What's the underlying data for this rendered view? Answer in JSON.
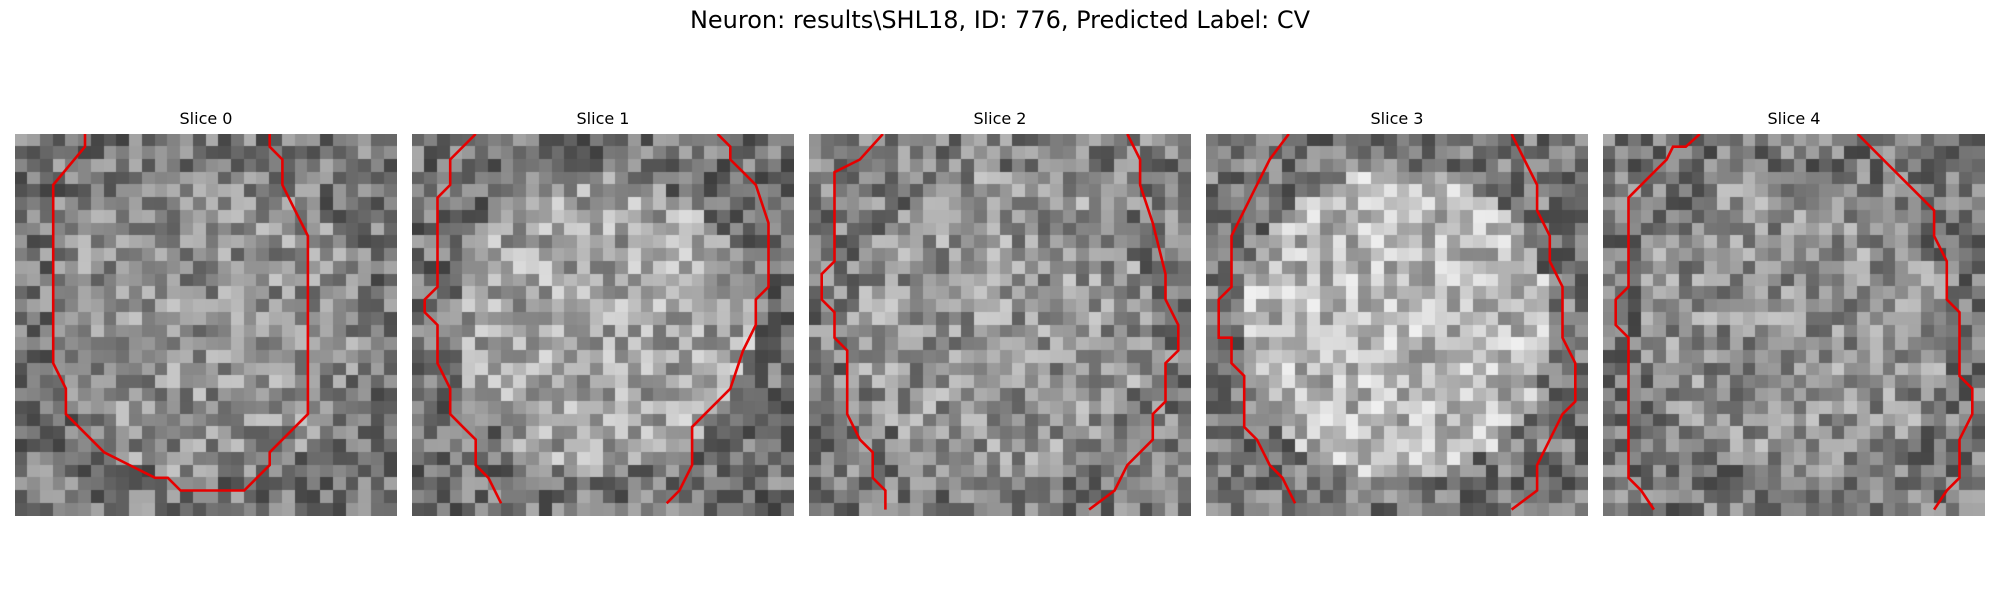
{
  "figure": {
    "title": "Neuron: results\\SHL18, ID: 776, Predicted Label: CV"
  },
  "image": {
    "colormap": "gray",
    "grid": [
      30,
      30
    ],
    "contour_color": "#e60000"
  },
  "slices": [
    {
      "title": "Slice 0",
      "seed": 11,
      "pattern": "uniform",
      "contour": [
        [
          5.5,
          0
        ],
        [
          5.5,
          1
        ],
        [
          3,
          4
        ],
        [
          3,
          18
        ],
        [
          4,
          20
        ],
        [
          4,
          22
        ],
        [
          6,
          24
        ],
        [
          7,
          25
        ],
        [
          9,
          26
        ],
        [
          11,
          27
        ],
        [
          12,
          27
        ],
        [
          13,
          28
        ],
        [
          18,
          28
        ],
        [
          20,
          26
        ],
        [
          20,
          25
        ],
        [
          23,
          22
        ],
        [
          23,
          8
        ],
        [
          22,
          6
        ],
        [
          21,
          4
        ],
        [
          21,
          2
        ],
        [
          20,
          1
        ],
        [
          20,
          0
        ]
      ]
    },
    {
      "title": "Slice 1",
      "seed": 23,
      "pattern": "ring",
      "contour": [
        [
          5,
          0
        ],
        [
          3,
          2
        ],
        [
          3,
          4
        ],
        [
          2,
          5
        ],
        [
          2,
          12
        ],
        [
          1,
          13
        ],
        [
          1,
          14
        ],
        [
          2,
          15
        ],
        [
          2,
          18
        ],
        [
          3,
          20
        ],
        [
          3,
          22
        ],
        [
          4,
          23
        ],
        [
          5,
          24
        ],
        [
          5,
          26
        ],
        [
          6,
          27
        ],
        [
          7,
          29
        ]
      ],
      "contour2": [
        [
          24,
          0
        ],
        [
          25,
          1
        ],
        [
          25,
          2
        ],
        [
          26,
          3
        ],
        [
          27,
          4
        ],
        [
          28,
          7
        ],
        [
          28,
          10
        ],
        [
          28,
          12
        ],
        [
          27,
          13
        ],
        [
          27,
          15
        ],
        [
          26,
          17
        ],
        [
          25,
          20
        ],
        [
          23,
          22
        ],
        [
          22,
          23
        ],
        [
          22,
          26
        ],
        [
          21,
          28
        ],
        [
          20,
          29
        ]
      ]
    },
    {
      "title": "Slice 2",
      "seed": 37,
      "pattern": "mixed",
      "contour": [
        [
          5.8,
          0
        ],
        [
          4,
          2
        ],
        [
          2,
          3
        ],
        [
          2,
          10
        ],
        [
          1,
          11
        ],
        [
          1,
          13
        ],
        [
          2,
          14
        ],
        [
          2,
          16
        ],
        [
          3,
          17
        ],
        [
          3,
          22
        ],
        [
          4,
          24
        ],
        [
          5,
          25
        ],
        [
          5,
          27
        ],
        [
          6,
          28
        ],
        [
          6,
          29.5
        ]
      ],
      "contour2": [
        [
          25,
          0
        ],
        [
          26,
          2
        ],
        [
          26,
          4
        ],
        [
          27,
          7
        ],
        [
          28,
          11
        ],
        [
          28,
          13
        ],
        [
          29,
          15
        ],
        [
          29,
          17
        ],
        [
          28,
          18
        ],
        [
          28,
          21
        ],
        [
          27,
          22
        ],
        [
          27,
          24
        ],
        [
          26,
          25
        ],
        [
          25,
          26
        ],
        [
          24,
          28
        ],
        [
          22,
          29.5
        ]
      ]
    },
    {
      "title": "Slice 3",
      "seed": 41,
      "pattern": "bright",
      "contour": [
        [
          6.5,
          0
        ],
        [
          5,
          2
        ],
        [
          4,
          4
        ],
        [
          3,
          6
        ],
        [
          2,
          8
        ],
        [
          2,
          12
        ],
        [
          1,
          13
        ],
        [
          1,
          16
        ],
        [
          2,
          16
        ],
        [
          2,
          18
        ],
        [
          3,
          19
        ],
        [
          3,
          23
        ],
        [
          4,
          24
        ],
        [
          5,
          26
        ],
        [
          6,
          27
        ],
        [
          7,
          29
        ]
      ],
      "contour2": [
        [
          24,
          0
        ],
        [
          25,
          2
        ],
        [
          26,
          4
        ],
        [
          26,
          6
        ],
        [
          27,
          8
        ],
        [
          27,
          10
        ],
        [
          28,
          12
        ],
        [
          28,
          16
        ],
        [
          29,
          18
        ],
        [
          29,
          21
        ],
        [
          28,
          22
        ],
        [
          27,
          24
        ],
        [
          26,
          26
        ],
        [
          26,
          28
        ],
        [
          24,
          29.5
        ]
      ]
    },
    {
      "title": "Slice 4",
      "seed": 53,
      "pattern": "uniform",
      "contour": [
        [
          7.6,
          0
        ],
        [
          6.5,
          1
        ],
        [
          5.5,
          1
        ],
        [
          5,
          2
        ],
        [
          4,
          3
        ],
        [
          3,
          4
        ],
        [
          2,
          5
        ],
        [
          2,
          12
        ],
        [
          1,
          13
        ],
        [
          1,
          15
        ],
        [
          2,
          16
        ],
        [
          2,
          27
        ],
        [
          3,
          28
        ],
        [
          4,
          29.5
        ]
      ],
      "contour2": [
        [
          20,
          0
        ],
        [
          22,
          2
        ],
        [
          24,
          4
        ],
        [
          26,
          6
        ],
        [
          26,
          8
        ],
        [
          27,
          10
        ],
        [
          27,
          13
        ],
        [
          28,
          14
        ],
        [
          28,
          19
        ],
        [
          29,
          20
        ],
        [
          29,
          22
        ],
        [
          28,
          24
        ],
        [
          28,
          27
        ],
        [
          27,
          28
        ],
        [
          26,
          29.5
        ]
      ]
    }
  ]
}
